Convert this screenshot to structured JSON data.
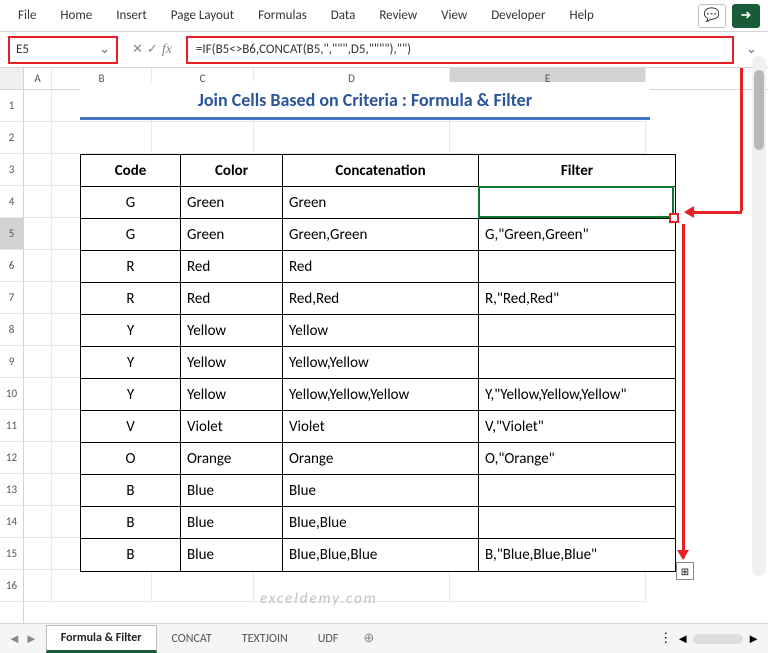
{
  "ribbon": {
    "tabs": [
      "File",
      "Home",
      "Insert",
      "Page Layout",
      "Formulas",
      "Data",
      "Review",
      "View",
      "Developer",
      "Help"
    ],
    "comment_icon": "💬",
    "share_icon": "➜"
  },
  "name_box": {
    "value": "E5",
    "border_color": "#e82127"
  },
  "formula_bar": {
    "fx_cancel": "✕",
    "fx_accept": "✓",
    "fx_label": "fx",
    "formula": "=IF(B5<>B6,CONCAT(B5,\",\"\"\",D5,\"\"\"\"),\"\")",
    "border_color": "#e82127"
  },
  "columns": [
    "A",
    "B",
    "C",
    "D",
    "E"
  ],
  "rows": [
    "1",
    "2",
    "3",
    "4",
    "5",
    "6",
    "7",
    "8",
    "9",
    "10",
    "11",
    "12",
    "13",
    "14",
    "15",
    "16"
  ],
  "selected_row": "5",
  "selected_col": "E",
  "title": "Join Cells Based on Criteria : Formula & Filter",
  "title_color": "#2a5699",
  "title_underline_color": "#4472c4",
  "headers": {
    "code": "Code",
    "color": "Color",
    "concat": "Concatenation",
    "filter": "Filter"
  },
  "data_rows": [
    {
      "code": "G",
      "color": "Green",
      "concat": "Green",
      "filter": ""
    },
    {
      "code": "G",
      "color": "Green",
      "concat": "Green,Green",
      "filter": "G,\"Green,Green\""
    },
    {
      "code": "R",
      "color": "Red",
      "concat": "Red",
      "filter": ""
    },
    {
      "code": "R",
      "color": "Red",
      "concat": "Red,Red",
      "filter": "R,\"Red,Red\""
    },
    {
      "code": "Y",
      "color": "Yellow",
      "concat": "Yellow",
      "filter": ""
    },
    {
      "code": "Y",
      "color": "Yellow",
      "concat": "Yellow,Yellow",
      "filter": ""
    },
    {
      "code": "Y",
      "color": "Yellow",
      "concat": "Yellow,Yellow,Yellow",
      "filter": "Y,\"Yellow,Yellow,Yellow\""
    },
    {
      "code": "V",
      "color": "Violet",
      "concat": "Violet",
      "filter": "V,\"Violet\""
    },
    {
      "code": "O",
      "color": "Orange",
      "concat": "Orange",
      "filter": "O,\"Orange\""
    },
    {
      "code": "B",
      "color": "Blue",
      "concat": "Blue",
      "filter": ""
    },
    {
      "code": "B",
      "color": "Blue",
      "concat": "Blue,Blue",
      "filter": ""
    },
    {
      "code": "B",
      "color": "Blue",
      "concat": "Blue,Blue,Blue",
      "filter": "B,\"Blue,Blue,Blue\""
    }
  ],
  "active_cell": {
    "border_color": "#0e7535"
  },
  "fill_handle": {
    "border_color": "#e82127"
  },
  "annotation_color": "#e82127",
  "sheet_tabs": {
    "tabs": [
      "Formula & Filter",
      "CONCAT",
      "TEXTJOIN",
      "UDF"
    ],
    "active": 0,
    "nav_left": "◄",
    "nav_right": "►",
    "add": "⊕",
    "menu": "⋮"
  },
  "watermark": "exceldemy.com",
  "autofill_icon": "⊞"
}
